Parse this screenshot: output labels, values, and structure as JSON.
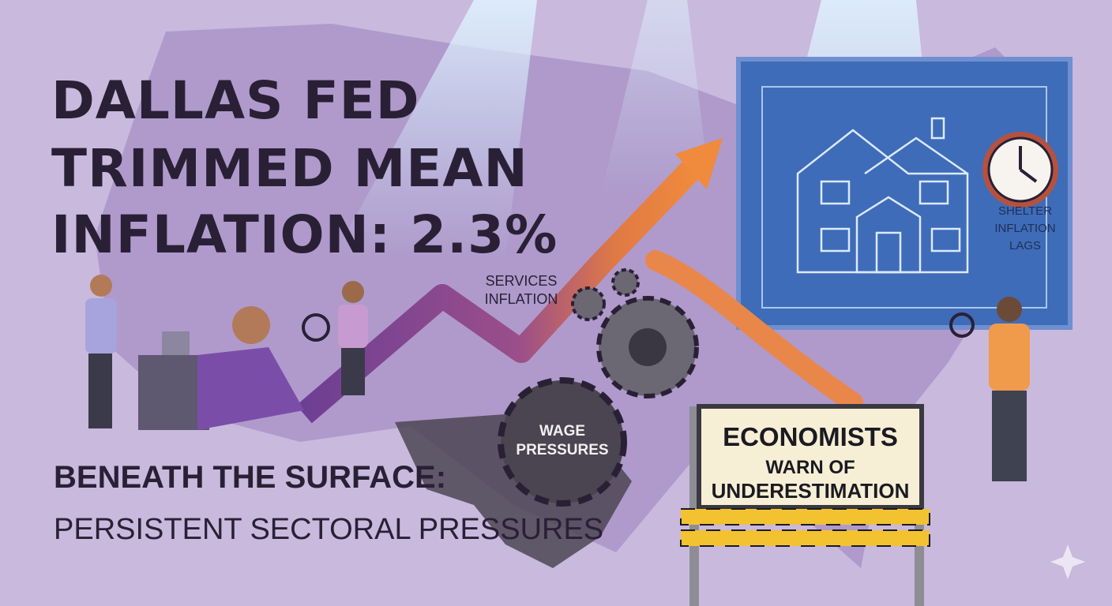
{
  "header": {
    "title_lines": [
      "DALLAS FED",
      "TRIMMED MEAN",
      "INFLATION: 2.3%"
    ]
  },
  "subtitle": {
    "lines": [
      "BENEATH THE SURFACE:",
      "PERSISTENT SECTORAL PRESSURES"
    ]
  },
  "labels": {
    "services": [
      "SERVICES",
      "INFLATION"
    ],
    "wage": [
      "WAGE",
      "PRESSURES"
    ],
    "shelter": [
      "SHELTER",
      "INFLATION",
      "LAGS"
    ],
    "sign": [
      "ECONOMISTS",
      "WARN OF",
      "UNDERESTIMATION"
    ]
  }
}
